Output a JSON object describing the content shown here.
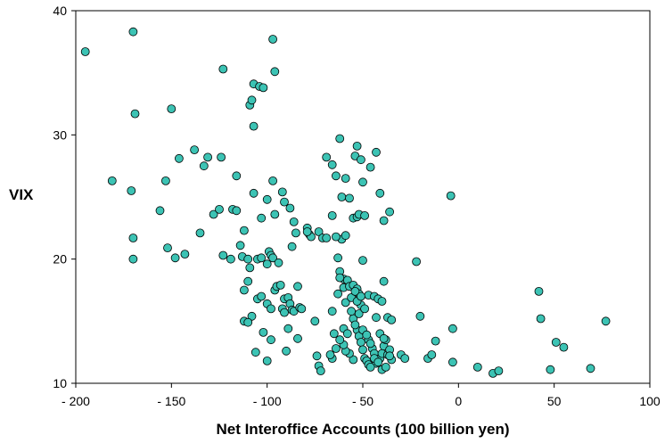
{
  "chart_data": {
    "type": "scatter",
    "xlabel": "Net Interoffice Accounts (100 billion yen)",
    "ylabel": "VIX",
    "xlim": [
      -200,
      100
    ],
    "ylim": [
      10,
      40
    ],
    "x_ticks": [
      -200,
      -150,
      -100,
      -50,
      0,
      50,
      100
    ],
    "x_tick_labels": [
      "- 200",
      "- 150",
      "- 100",
      "- 50",
      "0",
      "50",
      "100"
    ],
    "y_ticks": [
      10,
      20,
      30,
      40
    ],
    "y_tick_labels": [
      "10",
      "20",
      "30",
      "40"
    ],
    "grid": false,
    "marker_color": "#3cc3b4",
    "marker_edge": "#000000",
    "points": [
      [
        -195,
        36.7
      ],
      [
        -170,
        38.3
      ],
      [
        -169,
        31.7
      ],
      [
        -181,
        26.3
      ],
      [
        -171,
        25.5
      ],
      [
        -170,
        21.7
      ],
      [
        -170,
        20.0
      ],
      [
        -156,
        23.9
      ],
      [
        -153,
        26.3
      ],
      [
        -150,
        32.1
      ],
      [
        -146,
        28.1
      ],
      [
        -152,
        20.9
      ],
      [
        -148,
        20.1
      ],
      [
        -143,
        20.4
      ],
      [
        -138,
        28.8
      ],
      [
        -135,
        22.1
      ],
      [
        -133,
        27.5
      ],
      [
        -131,
        28.2
      ],
      [
        -128,
        23.6
      ],
      [
        -124,
        28.2
      ],
      [
        -123,
        35.3
      ],
      [
        -125,
        24.0
      ],
      [
        -123,
        20.3
      ],
      [
        -118,
        24.0
      ],
      [
        -119,
        20.0
      ],
      [
        -116,
        26.7
      ],
      [
        -116,
        23.9
      ],
      [
        -114,
        21.1
      ],
      [
        -113,
        20.2
      ],
      [
        -112,
        22.3
      ],
      [
        -110,
        20.0
      ],
      [
        -109,
        19.3
      ],
      [
        -107,
        25.3
      ],
      [
        -105,
        20.0
      ],
      [
        -109,
        32.4
      ],
      [
        -108,
        32.8
      ],
      [
        -107,
        34.1
      ],
      [
        -104,
        33.9
      ],
      [
        -102,
        33.8
      ],
      [
        -107,
        30.7
      ],
      [
        -97,
        37.7
      ],
      [
        -96,
        35.1
      ],
      [
        -97,
        26.3
      ],
      [
        -100,
        24.8
      ],
      [
        -103,
        23.3
      ],
      [
        -96,
        23.6
      ],
      [
        -99,
        20.6
      ],
      [
        -98,
        20.3
      ],
      [
        -100,
        19.6
      ],
      [
        -97,
        20.1
      ],
      [
        -103,
        20.1
      ],
      [
        -94,
        19.7
      ],
      [
        -92,
        25.4
      ],
      [
        -91,
        24.6
      ],
      [
        -88,
        24.1
      ],
      [
        -86,
        23.0
      ],
      [
        -85,
        22.1
      ],
      [
        -87,
        21.0
      ],
      [
        -79,
        22.5
      ],
      [
        -78,
        22.0
      ],
      [
        -77,
        21.8
      ],
      [
        -73,
        22.2
      ],
      [
        -71,
        21.7
      ],
      [
        -112,
        17.5
      ],
      [
        -110,
        18.2
      ],
      [
        -112,
        15.0
      ],
      [
        -108,
        15.4
      ],
      [
        -105,
        16.8
      ],
      [
        -103,
        17.0
      ],
      [
        -100,
        16.4
      ],
      [
        -98,
        16.0
      ],
      [
        -96,
        17.5
      ],
      [
        -95,
        17.8
      ],
      [
        -93,
        17.9
      ],
      [
        -91,
        16.8
      ],
      [
        -92,
        16.0
      ],
      [
        -91,
        15.7
      ],
      [
        -89,
        16.9
      ],
      [
        -88,
        16.4
      ],
      [
        -87,
        15.9
      ],
      [
        -89,
        14.4
      ],
      [
        -90,
        12.6
      ],
      [
        -86,
        15.8
      ],
      [
        -84,
        17.8
      ],
      [
        -83,
        16.1
      ],
      [
        -82,
        16.0
      ],
      [
        -84,
        13.6
      ],
      [
        -102,
        14.1
      ],
      [
        -98,
        13.5
      ],
      [
        -106,
        12.5
      ],
      [
        -100,
        11.8
      ],
      [
        -110,
        14.9
      ],
      [
        -79,
        22.2
      ],
      [
        -75,
        15.0
      ],
      [
        -74,
        12.2
      ],
      [
        -73,
        11.4
      ],
      [
        -72,
        11.0
      ],
      [
        -66,
        15.8
      ],
      [
        -69,
        28.2
      ],
      [
        -66,
        27.6
      ],
      [
        -64,
        26.7
      ],
      [
        -61,
        25.0
      ],
      [
        -62,
        29.7
      ],
      [
        -59,
        26.5
      ],
      [
        -57,
        24.9
      ],
      [
        -61,
        21.6
      ],
      [
        -59,
        21.9
      ],
      [
        -54,
        28.3
      ],
      [
        -53,
        29.1
      ],
      [
        -51,
        28.0
      ],
      [
        -50,
        26.2
      ],
      [
        -46,
        27.4
      ],
      [
        -43,
        28.6
      ],
      [
        -41,
        25.3
      ],
      [
        -55,
        23.3
      ],
      [
        -53,
        23.4
      ],
      [
        -52,
        23.6
      ],
      [
        -49,
        23.5
      ],
      [
        -36,
        23.8
      ],
      [
        -39,
        23.1
      ],
      [
        -66,
        23.5
      ],
      [
        -69,
        21.7
      ],
      [
        -64,
        21.8
      ],
      [
        -63,
        20.1
      ],
      [
        -62,
        19.0
      ],
      [
        -60,
        18.4
      ],
      [
        -58,
        18.3
      ],
      [
        -50,
        19.9
      ],
      [
        -62,
        18.5
      ],
      [
        -60,
        17.7
      ],
      [
        -57,
        17.8
      ],
      [
        -55,
        17.9
      ],
      [
        -53,
        17.6
      ],
      [
        -52,
        17.2
      ],
      [
        -51,
        16.3
      ],
      [
        -47,
        17.1
      ],
      [
        -44,
        17.0
      ],
      [
        -42,
        16.8
      ],
      [
        -40,
        16.6
      ],
      [
        -39,
        18.2
      ],
      [
        -37,
        15.3
      ],
      [
        -43,
        15.3
      ],
      [
        -47,
        13.5
      ],
      [
        -45,
        12.8
      ],
      [
        -44,
        12.4
      ],
      [
        -43,
        11.6
      ],
      [
        -41,
        12.0
      ],
      [
        -40,
        12.4
      ],
      [
        -39,
        13.0
      ],
      [
        -38,
        13.5
      ],
      [
        -37,
        12.3
      ],
      [
        -36,
        12.7
      ],
      [
        -35,
        11.9
      ],
      [
        -55,
        15.2
      ],
      [
        -53,
        14.3
      ],
      [
        -52,
        13.8
      ],
      [
        -51,
        13.3
      ],
      [
        -50,
        12.7
      ],
      [
        -49,
        12.0
      ],
      [
        -48,
        11.8
      ],
      [
        -47,
        11.5
      ],
      [
        -46,
        11.3
      ],
      [
        -55,
        11.9
      ],
      [
        -57,
        12.4
      ],
      [
        -59,
        12.6
      ],
      [
        -60,
        13.1
      ],
      [
        -62,
        13.5
      ],
      [
        -64,
        12.8
      ],
      [
        -66,
        12.0
      ],
      [
        -67,
        12.3
      ],
      [
        -65,
        14.0
      ],
      [
        -60,
        14.4
      ],
      [
        -58,
        14.0
      ],
      [
        -54,
        14.7
      ],
      [
        -56,
        15.8
      ],
      [
        -52,
        15.6
      ],
      [
        -49,
        16.0
      ],
      [
        -63,
        17.2
      ],
      [
        -59,
        16.5
      ],
      [
        -56,
        16.9
      ],
      [
        -54,
        17.4
      ],
      [
        -53,
        16.6
      ],
      [
        -51,
        17.0
      ],
      [
        -50,
        14.3
      ],
      [
        -48,
        13.9
      ],
      [
        -46,
        13.2
      ],
      [
        -44,
        12.0
      ],
      [
        -42,
        11.7
      ],
      [
        -40,
        11.1
      ],
      [
        -38,
        11.3
      ],
      [
        -36,
        12.2
      ],
      [
        -41,
        14.0
      ],
      [
        -39,
        13.6
      ],
      [
        -35,
        15.1
      ],
      [
        -30,
        12.3
      ],
      [
        -28,
        12.0
      ],
      [
        -22,
        19.8
      ],
      [
        -20,
        15.4
      ],
      [
        -16,
        12.0
      ],
      [
        -14,
        12.3
      ],
      [
        -12,
        13.4
      ],
      [
        -4,
        25.1
      ],
      [
        -3,
        14.4
      ],
      [
        -3,
        11.7
      ],
      [
        10,
        11.3
      ],
      [
        18,
        10.8
      ],
      [
        21,
        11.0
      ],
      [
        42,
        17.4
      ],
      [
        43,
        15.2
      ],
      [
        48,
        11.1
      ],
      [
        51,
        13.3
      ],
      [
        55,
        12.9
      ],
      [
        69,
        11.2
      ],
      [
        77,
        15.0
      ]
    ]
  }
}
